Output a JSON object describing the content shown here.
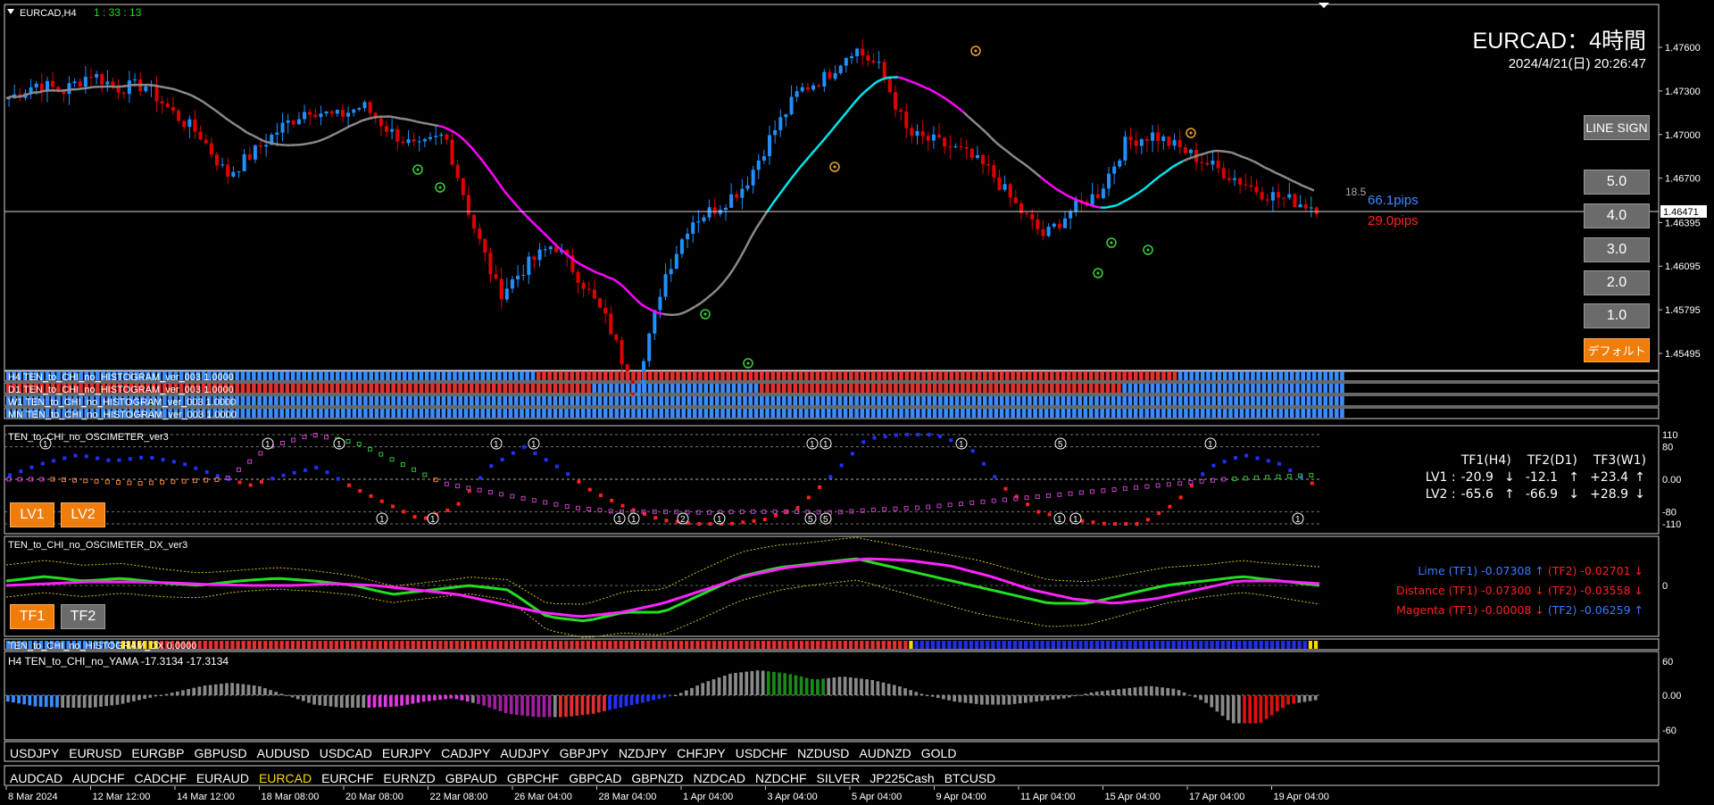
{
  "window": {
    "symbol_tf": "EURCAD,H4",
    "countdown": "1 : 33 : 13"
  },
  "header": {
    "title": "EURCAD：4時間",
    "datetime": "2024/4/21(日) 20:26:47"
  },
  "main_chart": {
    "price_labels": [
      "1.47600",
      "1.47300",
      "1.47000",
      "1.46700",
      "1.46395",
      "1.46095",
      "1.45795",
      "1.45495"
    ],
    "current_price": "1.46471",
    "spread": "18.5",
    "pips_up": "66.1pips",
    "pips_down": "29.0pips",
    "colors": {
      "bull": "#1e90ff",
      "bear": "#e00000",
      "ma_up": "#00e5ee",
      "ma_down": "#ff00ff"
    }
  },
  "right_panel": {
    "line_sign": "LINE SIGN",
    "levels": [
      "5.0",
      "4.0",
      "3.0",
      "2.0",
      "1.0"
    ],
    "default_btn": "デフォルト"
  },
  "histograms": [
    "H4 TEN_to_CHI_no_HISTOGRAM_ver_003 1.0000",
    "D1 TEN_to_CHI_no_HISTOGRAM_ver_003 1.0000",
    "W1 TEN_to_CHI_no_HISTOGRAM_ver_003 1.0000",
    "MN TEN_to_CHI_no_HISTOGRAM_ver_003 1.0000"
  ],
  "oscimeter": {
    "title": "TEN_to_CHI_no_OSCIMETER_ver3",
    "scale": [
      "110",
      "80",
      "0.00",
      "-80",
      "-110"
    ],
    "buttons": [
      "LV1",
      "LV2"
    ],
    "table_header": [
      "TF1(H4)",
      "TF2(D1)",
      "TF3(W1)"
    ],
    "rows": [
      {
        "label": "LV1 :",
        "v1": "-20.9",
        "a1": "↓",
        "v2": "-12.1",
        "a2": "↑",
        "v3": "+23.4",
        "a3": "↑"
      },
      {
        "label": "LV2 :",
        "v1": "-65.6",
        "a1": "↑",
        "v2": "-66.9",
        "a2": "↓",
        "v3": "+28.9",
        "a3": "↓"
      }
    ]
  },
  "oscimeter_dx": {
    "title": "TEN_to_CHI_no_OSCIMETER_DX_ver3",
    "buttons": [
      "TF1",
      "TF2"
    ],
    "zero": "0",
    "lines": [
      {
        "name": "Lime",
        "tf1": "(TF1) -0.07308",
        "a1": "↑",
        "tf2": "(TF2) -0.02701",
        "a2": "↓"
      },
      {
        "name": "Distance",
        "tf1": "(TF1) -0.07300",
        "a1": "↓",
        "tf2": "(TF2) -0.03558",
        "a2": "↓"
      },
      {
        "name": "Magenta",
        "tf1": "(TF1) -0.00008",
        "a1": "↓",
        "tf2": "(TF2) -0.06259",
        "a2": "↑"
      }
    ]
  },
  "histogram_dx": {
    "title": "TEN_to_CHI_no_HISTOGRAM_DX 0.0000"
  },
  "yama": {
    "title": "H4  TEN_to_CHI_no_YAMA -17.3134 -17.3134",
    "scale": [
      "60",
      "0.00",
      "-60"
    ]
  },
  "symbols_row1": [
    "USDJPY",
    "EURUSD",
    "EURGBP",
    "GBPUSD",
    "AUDUSD",
    "USDCAD",
    "EURJPY",
    "CADJPY",
    "AUDJPY",
    "GBPJPY",
    "NZDJPY",
    "CHFJPY",
    "USDCHF",
    "NZDUSD",
    "AUDNZD",
    "GOLD"
  ],
  "symbols_row2": [
    "AUDCAD",
    "AUDCHF",
    "CADCHF",
    "EURAUD",
    "EURCAD",
    "EURCHF",
    "EURNZD",
    "GBPAUD",
    "GBPCHF",
    "GBPCAD",
    "GBPNZD",
    "NZDCAD",
    "NZDCHF",
    "SILVER",
    "JP225Cash",
    "BTCUSD"
  ],
  "active_symbol": "EURCAD",
  "time_axis": [
    "8 Mar 2024",
    "12 Mar 12:00",
    "14 Mar 12:00",
    "18 Mar 08:00",
    "20 Mar 08:00",
    "22 Mar 08:00",
    "26 Mar 04:00",
    "28 Mar 04:00",
    "1 Apr 04:00",
    "3 Apr 04:00",
    "5 Apr 04:00",
    "9 Apr 04:00",
    "11 Apr 04:00",
    "15 Apr 04:00",
    "17 Apr 04:00",
    "19 Apr 04:00"
  ]
}
